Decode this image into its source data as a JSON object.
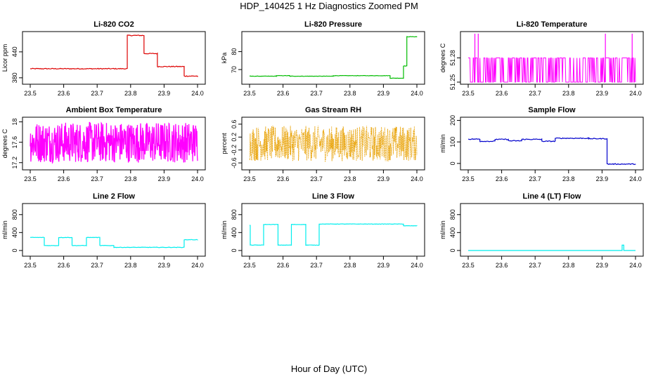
{
  "figure": {
    "title": "HDP_140425  1 Hz Diagnostics Zoomed PM",
    "xlabel": "Hour of Day (UTC)"
  },
  "chart_data": [
    {
      "type": "line",
      "title": "Li-820 CO2",
      "ylabel": "Licor ppm",
      "color": "#dd0000",
      "xlim": [
        23.5,
        24.0
      ],
      "ylim": [
        370,
        482
      ],
      "xticks": [
        "23.5",
        "23.6",
        "23.7",
        "23.8",
        "23.9",
        "24.0"
      ],
      "yticks": [
        380,
        440
      ],
      "series": [
        {
          "style": "step",
          "noise": 1,
          "x": [
            23.5,
            23.75,
            23.79,
            23.84,
            23.88,
            23.96,
            24.0
          ],
          "y": [
            401,
            401,
            478,
            436,
            406,
            384,
            382
          ]
        }
      ]
    },
    {
      "type": "line",
      "title": "Li-820 Pressure",
      "ylabel": "kPa",
      "color": "#00bb00",
      "xlim": [
        23.5,
        24.0
      ],
      "ylim": [
        63,
        90
      ],
      "xticks": [
        "23.5",
        "23.6",
        "23.7",
        "23.8",
        "23.9",
        "24.0"
      ],
      "yticks": [
        70,
        80
      ],
      "series": [
        {
          "style": "step",
          "noise": 0.1,
          "x": [
            23.5,
            23.58,
            23.62,
            23.75,
            23.92,
            23.96,
            23.97,
            24.0
          ],
          "y": [
            66.3,
            66.6,
            66.3,
            66.6,
            65.2,
            72,
            88.3,
            88.3
          ]
        }
      ]
    },
    {
      "type": "line",
      "title": "Li-820 Temperature",
      "ylabel": "degrees C",
      "color": "#ff00ff",
      "xlim": [
        23.5,
        24.0
      ],
      "ylim": [
        51.25,
        51.31
      ],
      "xticks": [
        "23.5",
        "23.6",
        "23.7",
        "23.8",
        "23.9",
        "24.0"
      ],
      "yticks": [
        51.25,
        51.28
      ],
      "series": [
        {
          "style": "binary",
          "values": [
            51.25,
            51.28
          ],
          "spikes": [
            23.52,
            23.53,
            23.91,
            23.99
          ],
          "spike_value": 51.31
        }
      ]
    },
    {
      "type": "line",
      "title": "Ambient Box Temperature",
      "ylabel": "degrees C",
      "color": "#ff00ff",
      "xlim": [
        23.5,
        24.0
      ],
      "ylim": [
        17.1,
        18.05
      ],
      "xticks": [
        "23.5",
        "23.6",
        "23.7",
        "23.8",
        "23.9",
        "24.0"
      ],
      "yticks": [
        17.2,
        17.6,
        18.0
      ],
      "series": [
        {
          "style": "noise",
          "center": 17.6,
          "amplitude": 0.4
        }
      ]
    },
    {
      "type": "scatter",
      "title": "Gas Stream RH",
      "ylabel": "percent",
      "color": "#e8a000",
      "xlim": [
        23.5,
        24.0
      ],
      "ylim": [
        -0.75,
        0.75
      ],
      "xticks": [
        "23.5",
        "23.6",
        "23.7",
        "23.8",
        "23.9",
        "24.0"
      ],
      "yticks": [
        -0.6,
        -0.2,
        0.2,
        0.6
      ],
      "series": [
        {
          "style": "noise",
          "center": 0.0,
          "amplitude": 0.55
        }
      ]
    },
    {
      "type": "line",
      "title": "Sample Flow",
      "ylabel": "ml/min",
      "color": "#0000cc",
      "xlim": [
        23.5,
        24.0
      ],
      "ylim": [
        -20,
        205
      ],
      "xticks": [
        "23.5",
        "23.6",
        "23.7",
        "23.8",
        "23.9",
        "24.0"
      ],
      "yticks": [
        0,
        100,
        200
      ],
      "series": [
        {
          "style": "step",
          "noise": 2,
          "x": [
            23.5,
            23.535,
            23.58,
            23.62,
            23.66,
            23.72,
            23.76,
            23.86,
            23.915,
            24.0
          ],
          "y": [
            113,
            103,
            112,
            105,
            112,
            103,
            117,
            115,
            -3,
            -3
          ]
        }
      ]
    },
    {
      "type": "line",
      "title": "Line 2 Flow",
      "ylabel": "ml/min",
      "color": "#00eeee",
      "xlim": [
        23.5,
        24.0
      ],
      "ylim": [
        -80,
        1000
      ],
      "xticks": [
        "23.5",
        "23.6",
        "23.7",
        "23.8",
        "23.9",
        "24.0"
      ],
      "yticks": [
        0,
        400,
        800
      ],
      "series": [
        {
          "style": "step",
          "noise": 5,
          "x": [
            23.5,
            23.542,
            23.585,
            23.625,
            23.668,
            23.708,
            23.75,
            23.96,
            24.0
          ],
          "y": [
            290,
            110,
            290,
            110,
            290,
            110,
            70,
            240,
            240
          ]
        }
      ]
    },
    {
      "type": "line",
      "title": "Line 3 Flow",
      "ylabel": "ml/min",
      "color": "#00eeee",
      "xlim": [
        23.5,
        24.0
      ],
      "ylim": [
        -80,
        1000
      ],
      "xticks": [
        "23.5",
        "23.6",
        "23.7",
        "23.8",
        "23.9",
        "24.0"
      ],
      "yticks": [
        0,
        400,
        800
      ],
      "series": [
        {
          "style": "step",
          "noise": 4,
          "x": [
            23.5,
            23.502,
            23.542,
            23.585,
            23.625,
            23.668,
            23.708,
            23.96,
            24.0
          ],
          "y": [
            560,
            120,
            580,
            120,
            580,
            120,
            590,
            550,
            550
          ]
        }
      ]
    },
    {
      "type": "line",
      "title": "Line 4 (LT) Flow",
      "ylabel": "ml/min",
      "color": "#00eeee",
      "xlim": [
        23.5,
        24.0
      ],
      "ylim": [
        -80,
        1000
      ],
      "xticks": [
        "23.5",
        "23.6",
        "23.7",
        "23.8",
        "23.9",
        "24.0"
      ],
      "yticks": [
        0,
        400,
        800
      ],
      "series": [
        {
          "style": "step",
          "noise": 0,
          "x": [
            23.5,
            23.958,
            23.96,
            23.965,
            24.0
          ],
          "y": [
            0,
            0,
            120,
            0,
            0
          ]
        }
      ]
    }
  ]
}
